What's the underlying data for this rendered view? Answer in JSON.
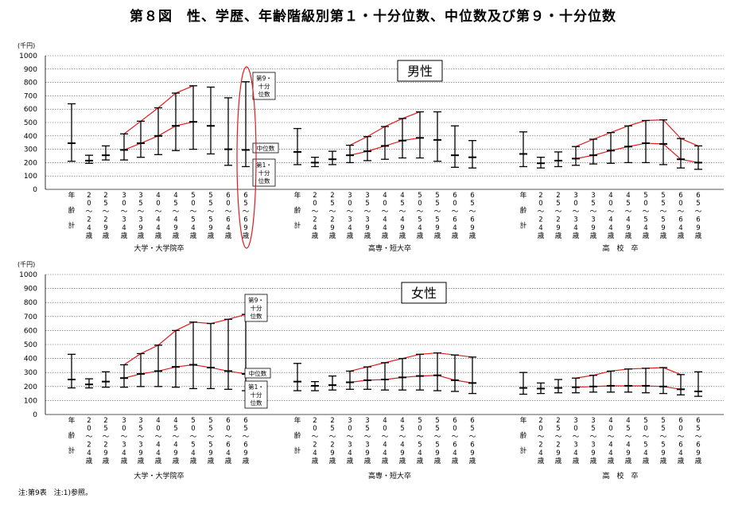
{
  "figure_title": "第８図　性、学歴、年齢階級別第１・十分位数、中位数及び第９・十分位数",
  "footnote": "注:第9表　注:1)参照。",
  "unit_label": "(千円)",
  "row_labels": [
    "男性",
    "女性"
  ],
  "group_labels": [
    "大学・大学院卒",
    "高専・短大卒",
    "高　校　卒"
  ],
  "age_classes": [
    [
      "年",
      "齢",
      "計"
    ],
    [
      "2",
      "0",
      "～",
      "2",
      "4",
      "歳"
    ],
    [
      "2",
      "5",
      "～",
      "2",
      "9",
      "歳"
    ],
    [
      "3",
      "0",
      "～",
      "3",
      "4",
      "歳"
    ],
    [
      "3",
      "5",
      "～",
      "3",
      "9",
      "歳"
    ],
    [
      "4",
      "0",
      "～",
      "4",
      "4",
      "歳"
    ],
    [
      "4",
      "5",
      "～",
      "4",
      "9",
      "歳"
    ],
    [
      "5",
      "0",
      "～",
      "5",
      "4",
      "歳"
    ],
    [
      "5",
      "5",
      "～",
      "5",
      "9",
      "歳"
    ],
    [
      "6",
      "0",
      "～",
      "6",
      "4",
      "歳"
    ],
    [
      "6",
      "5",
      "～",
      "6",
      "9",
      "歳"
    ]
  ],
  "annotations": {
    "d9": [
      "第9・",
      "十分",
      "位数"
    ],
    "median": "中位数",
    "d1": [
      "第1・",
      "十分",
      "位数"
    ]
  },
  "colors": {
    "accent_line": "#e41a1c",
    "bar": "#000000",
    "grid": "#555555"
  },
  "chart_data": [
    {
      "type": "error-bar",
      "panel": "男性",
      "ylim": [
        0,
        1000
      ],
      "yticks": [
        0,
        100,
        200,
        300,
        400,
        500,
        600,
        700,
        800,
        900,
        1000
      ],
      "grid": true,
      "groups": [
        {
          "name": "大学・大学院卒",
          "d1": [
            210,
            195,
            220,
            220,
            240,
            260,
            290,
            300,
            265,
            180,
            170
          ],
          "median": [
            345,
            215,
            255,
            295,
            345,
            400,
            475,
            505,
            475,
            300,
            295
          ],
          "d9": [
            640,
            255,
            325,
            415,
            510,
            610,
            720,
            775,
            765,
            685,
            805
          ],
          "line_from": 3,
          "line_to": 7
        },
        {
          "name": "高専・短大卒",
          "d1": [
            185,
            170,
            185,
            200,
            215,
            225,
            235,
            235,
            210,
            165,
            160
          ],
          "median": [
            280,
            200,
            225,
            255,
            285,
            325,
            365,
            385,
            370,
            255,
            240
          ],
          "d9": [
            455,
            240,
            285,
            330,
            395,
            470,
            530,
            580,
            580,
            475,
            365
          ],
          "line_from": 3,
          "line_to": 7
        },
        {
          "name": "高校卒",
          "d1": [
            170,
            160,
            170,
            180,
            190,
            195,
            200,
            200,
            185,
            160,
            150
          ],
          "median": [
            265,
            195,
            215,
            230,
            255,
            290,
            320,
            345,
            340,
            225,
            200
          ],
          "d9": [
            430,
            240,
            280,
            320,
            375,
            425,
            475,
            515,
            520,
            380,
            325
          ],
          "line_from": 3,
          "line_to": 10
        }
      ]
    },
    {
      "type": "error-bar",
      "panel": "女性",
      "ylim": [
        0,
        1000
      ],
      "yticks": [
        0,
        100,
        200,
        300,
        400,
        500,
        600,
        700,
        800,
        900,
        1000
      ],
      "grid": true,
      "groups": [
        {
          "name": "大学・大学院卒",
          "d1": [
            190,
            190,
            195,
            195,
            200,
            200,
            195,
            185,
            185,
            180,
            170
          ],
          "median": [
            250,
            215,
            235,
            260,
            290,
            310,
            340,
            355,
            335,
            310,
            290
          ],
          "d9": [
            430,
            255,
            305,
            355,
            435,
            495,
            600,
            660,
            650,
            680,
            715
          ],
          "line_from": 3,
          "line_to": 10
        },
        {
          "name": "高専・短大卒",
          "d1": [
            170,
            170,
            175,
            180,
            180,
            175,
            175,
            175,
            170,
            165,
            150
          ],
          "median": [
            235,
            205,
            210,
            230,
            245,
            250,
            265,
            275,
            280,
            245,
            225
          ],
          "d9": [
            365,
            235,
            275,
            310,
            340,
            370,
            400,
            430,
            440,
            425,
            410
          ],
          "line_from": 3,
          "line_to": 10
        },
        {
          "name": "高校卒",
          "d1": [
            145,
            150,
            155,
            155,
            160,
            160,
            160,
            155,
            150,
            140,
            130
          ],
          "median": [
            190,
            185,
            190,
            195,
            200,
            205,
            205,
            205,
            200,
            180,
            165
          ],
          "d9": [
            300,
            225,
            250,
            260,
            280,
            310,
            325,
            330,
            335,
            285,
            305
          ],
          "line_from": 3,
          "line_to": 9
        }
      ]
    }
  ]
}
